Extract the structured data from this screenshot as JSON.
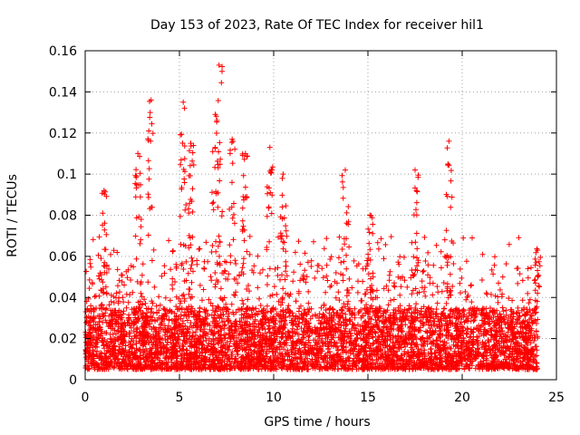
{
  "chart_data": {
    "type": "scatter",
    "title": "Day 153 of 2023, Rate Of TEC Index for receiver hil1",
    "xlabel": "GPS time / hours",
    "ylabel": "ROTI / TECUs",
    "xlim": [
      0,
      25
    ],
    "ylim": [
      0,
      0.16
    ],
    "xticks": [
      "0",
      "5",
      "10",
      "15",
      "20",
      "25"
    ],
    "yticks": [
      "0",
      "0.02",
      "0.04",
      "0.06",
      "0.08",
      "0.1",
      "0.12",
      "0.14",
      "0.16"
    ],
    "grid": true,
    "marker": "+",
    "color": "#ff0000",
    "series": [
      {
        "name": "ROTI",
        "x_range": [
          0,
          24
        ],
        "baseline_range": [
          0.005,
          0.035
        ],
        "peaks": [
          {
            "x": 1.0,
            "y": 0.092
          },
          {
            "x": 2.8,
            "y": 0.11
          },
          {
            "x": 3.5,
            "y": 0.136
          },
          {
            "x": 5.2,
            "y": 0.135
          },
          {
            "x": 5.6,
            "y": 0.115
          },
          {
            "x": 6.9,
            "y": 0.129
          },
          {
            "x": 7.1,
            "y": 0.153
          },
          {
            "x": 7.8,
            "y": 0.117
          },
          {
            "x": 8.5,
            "y": 0.11
          },
          {
            "x": 9.8,
            "y": 0.113
          },
          {
            "x": 10.5,
            "y": 0.1
          },
          {
            "x": 13.8,
            "y": 0.102
          },
          {
            "x": 15.1,
            "y": 0.08
          },
          {
            "x": 17.5,
            "y": 0.102
          },
          {
            "x": 19.3,
            "y": 0.116
          },
          {
            "x": 24.0,
            "y": 0.063
          }
        ]
      }
    ]
  }
}
